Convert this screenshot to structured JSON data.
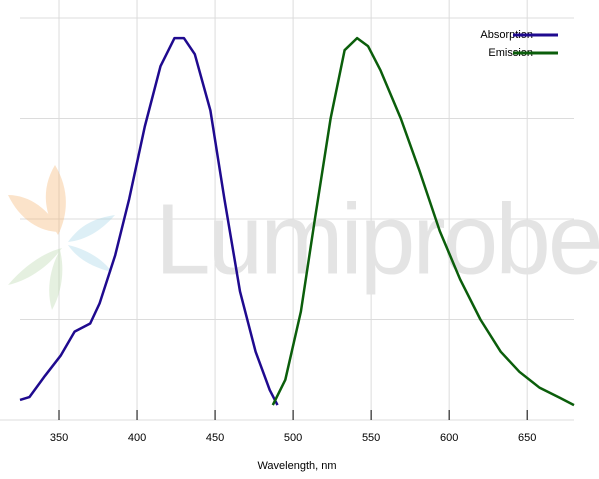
{
  "chart_data": {
    "type": "line",
    "watermark": "Lumiprobe",
    "x_label": "Wavelength, nm",
    "xlim": [
      325,
      680
    ],
    "xticks": [
      350,
      400,
      450,
      500,
      550,
      600,
      650
    ],
    "ylim": [
      0,
      1
    ],
    "yticks": [
      0.25,
      0.5,
      0.75,
      1
    ],
    "grid": true,
    "legend": "upper right",
    "series": [
      {
        "name": "Absorption",
        "color": "#1f0a8f",
        "x": [
          325,
          331,
          341,
          351,
          360,
          370,
          376,
          386,
          395,
          405,
          415,
          424,
          430,
          437,
          447,
          456,
          466,
          476,
          485,
          490
        ],
        "values": [
          0.05,
          0.057,
          0.11,
          0.16,
          0.22,
          0.24,
          0.29,
          0.41,
          0.55,
          0.73,
          0.88,
          0.95,
          0.95,
          0.91,
          0.77,
          0.55,
          0.32,
          0.17,
          0.075,
          0.037
        ]
      },
      {
        "name": "Emission",
        "color": "#0b5e0b",
        "x": [
          487,
          495,
          505,
          514,
          524,
          533,
          541,
          548,
          556,
          569,
          581,
          594,
          607,
          620,
          633,
          645,
          658,
          671,
          680
        ],
        "values": [
          0.037,
          0.1,
          0.27,
          0.5,
          0.75,
          0.92,
          0.95,
          0.93,
          0.87,
          0.75,
          0.62,
          0.47,
          0.35,
          0.25,
          0.17,
          0.12,
          0.08,
          0.055,
          0.037
        ]
      }
    ]
  }
}
